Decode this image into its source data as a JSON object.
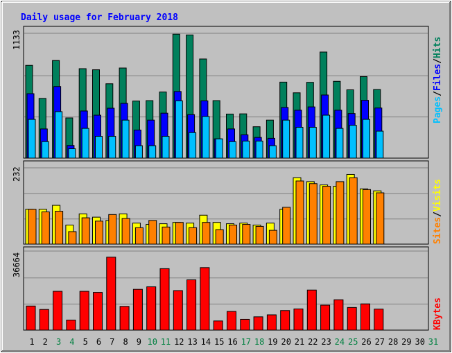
{
  "title": "Daily usage for February 2018",
  "colors": {
    "background": "#c0c0c0",
    "plot_bg": "#c0c0c0",
    "title": "#0000ff",
    "hits": "#00805c",
    "files": "#0000ff",
    "pages": "#00c0ff",
    "visits": "#ffff00",
    "sites": "#ff8000",
    "kbytes": "#ff0000",
    "weekend_label": "#008040",
    "weekday_label": "#000000",
    "grid": "#808080"
  },
  "chart_data": [
    {
      "type": "bar",
      "name": "hits-files-pages",
      "y_tick_label": "1133",
      "ylim": [
        0,
        1133
      ],
      "legend": [
        "Pages",
        "/",
        "Files",
        "/",
        "Hits"
      ],
      "categories": [
        "1",
        "2",
        "3",
        "4",
        "5",
        "6",
        "7",
        "8",
        "9",
        "10",
        "11",
        "12",
        "13",
        "14",
        "15",
        "16",
        "17",
        "18",
        "19",
        "20",
        "21",
        "22",
        "23",
        "24",
        "25",
        "26",
        "27",
        "28",
        "29",
        "30",
        "31"
      ],
      "series": [
        {
          "name": "Hits",
          "values": [
            842,
            542,
            886,
            365,
            812,
            802,
            675,
            818,
            518,
            522,
            600,
            1125,
            1118,
            900,
            522,
            400,
            402,
            285,
            345,
            690,
            593,
            688,
            963,
            697,
            620,
            740,
            623,
            0,
            0,
            0,
            0
          ]
        },
        {
          "name": "Files",
          "values": [
            585,
            265,
            650,
            115,
            428,
            390,
            453,
            497,
            255,
            345,
            408,
            605,
            395,
            520,
            175,
            265,
            212,
            188,
            180,
            460,
            435,
            465,
            573,
            435,
            405,
            525,
            455,
            0,
            0,
            0,
            0
          ]
        },
        {
          "name": "Pages",
          "values": [
            352,
            150,
            422,
            85,
            270,
            198,
            198,
            345,
            113,
            113,
            198,
            520,
            232,
            378,
            175,
            150,
            155,
            155,
            113,
            345,
            280,
            280,
            390,
            270,
            298,
            352,
            245,
            0,
            0,
            0,
            0
          ]
        }
      ]
    },
    {
      "type": "bar",
      "name": "visits-sites",
      "y_tick_label": "232",
      "ylim": [
        0,
        232
      ],
      "legend": [
        "Sites",
        "/",
        "Visits"
      ],
      "categories": [
        "1",
        "2",
        "3",
        "4",
        "5",
        "6",
        "7",
        "8",
        "9",
        "10",
        "11",
        "12",
        "13",
        "14",
        "15",
        "16",
        "17",
        "18",
        "19",
        "20",
        "21",
        "22",
        "23",
        "24",
        "25",
        "26",
        "27",
        "28",
        "29",
        "30",
        "31"
      ],
      "series": [
        {
          "name": "Visits",
          "values": [
            106,
            106,
            118,
            58,
            92,
            82,
            72,
            92,
            64,
            60,
            62,
            66,
            64,
            88,
            66,
            62,
            64,
            58,
            64,
            106,
            202,
            190,
            180,
            176,
            212,
            168,
            162,
            0,
            0,
            0,
            0
          ]
        },
        {
          "name": "Sites",
          "values": [
            106,
            98,
            100,
            38,
            80,
            70,
            90,
            78,
            50,
            72,
            52,
            66,
            50,
            66,
            44,
            58,
            60,
            54,
            42,
            112,
            192,
            184,
            176,
            190,
            202,
            166,
            156,
            0,
            0,
            0,
            0
          ]
        }
      ]
    },
    {
      "type": "bar",
      "name": "kbytes",
      "y_tick_label": "36664",
      "ylim": [
        0,
        44000
      ],
      "legend": [
        "KBytes"
      ],
      "categories": [
        "1",
        "2",
        "3",
        "4",
        "5",
        "6",
        "7",
        "8",
        "9",
        "10",
        "11",
        "12",
        "13",
        "14",
        "15",
        "16",
        "17",
        "18",
        "19",
        "20",
        "21",
        "22",
        "23",
        "24",
        "25",
        "26",
        "27",
        "28",
        "29",
        "30",
        "31"
      ],
      "series": [
        {
          "name": "KBytes",
          "values": [
            13400,
            11500,
            21600,
            5600,
            21600,
            21000,
            40600,
            13200,
            22700,
            24100,
            34200,
            22000,
            28000,
            34800,
            5100,
            10400,
            6000,
            7400,
            8500,
            10900,
            11800,
            22300,
            13900,
            16900,
            12600,
            14600,
            11700,
            0,
            0,
            0,
            0
          ]
        }
      ]
    }
  ],
  "x_labels": [
    {
      "label": "1",
      "weekend": false
    },
    {
      "label": "2",
      "weekend": false
    },
    {
      "label": "3",
      "weekend": true
    },
    {
      "label": "4",
      "weekend": true
    },
    {
      "label": "5",
      "weekend": false
    },
    {
      "label": "6",
      "weekend": false
    },
    {
      "label": "7",
      "weekend": false
    },
    {
      "label": "8",
      "weekend": false
    },
    {
      "label": "9",
      "weekend": false
    },
    {
      "label": "10",
      "weekend": true
    },
    {
      "label": "11",
      "weekend": true
    },
    {
      "label": "12",
      "weekend": false
    },
    {
      "label": "13",
      "weekend": false
    },
    {
      "label": "14",
      "weekend": false
    },
    {
      "label": "15",
      "weekend": false
    },
    {
      "label": "16",
      "weekend": false
    },
    {
      "label": "17",
      "weekend": true
    },
    {
      "label": "18",
      "weekend": true
    },
    {
      "label": "19",
      "weekend": false
    },
    {
      "label": "20",
      "weekend": false
    },
    {
      "label": "21",
      "weekend": false
    },
    {
      "label": "22",
      "weekend": false
    },
    {
      "label": "23",
      "weekend": false
    },
    {
      "label": "24",
      "weekend": true
    },
    {
      "label": "25",
      "weekend": true
    },
    {
      "label": "26",
      "weekend": false
    },
    {
      "label": "27",
      "weekend": false
    },
    {
      "label": "28",
      "weekend": false
    },
    {
      "label": "29",
      "weekend": false
    },
    {
      "label": "30",
      "weekend": false
    },
    {
      "label": "31",
      "weekend": true
    }
  ]
}
